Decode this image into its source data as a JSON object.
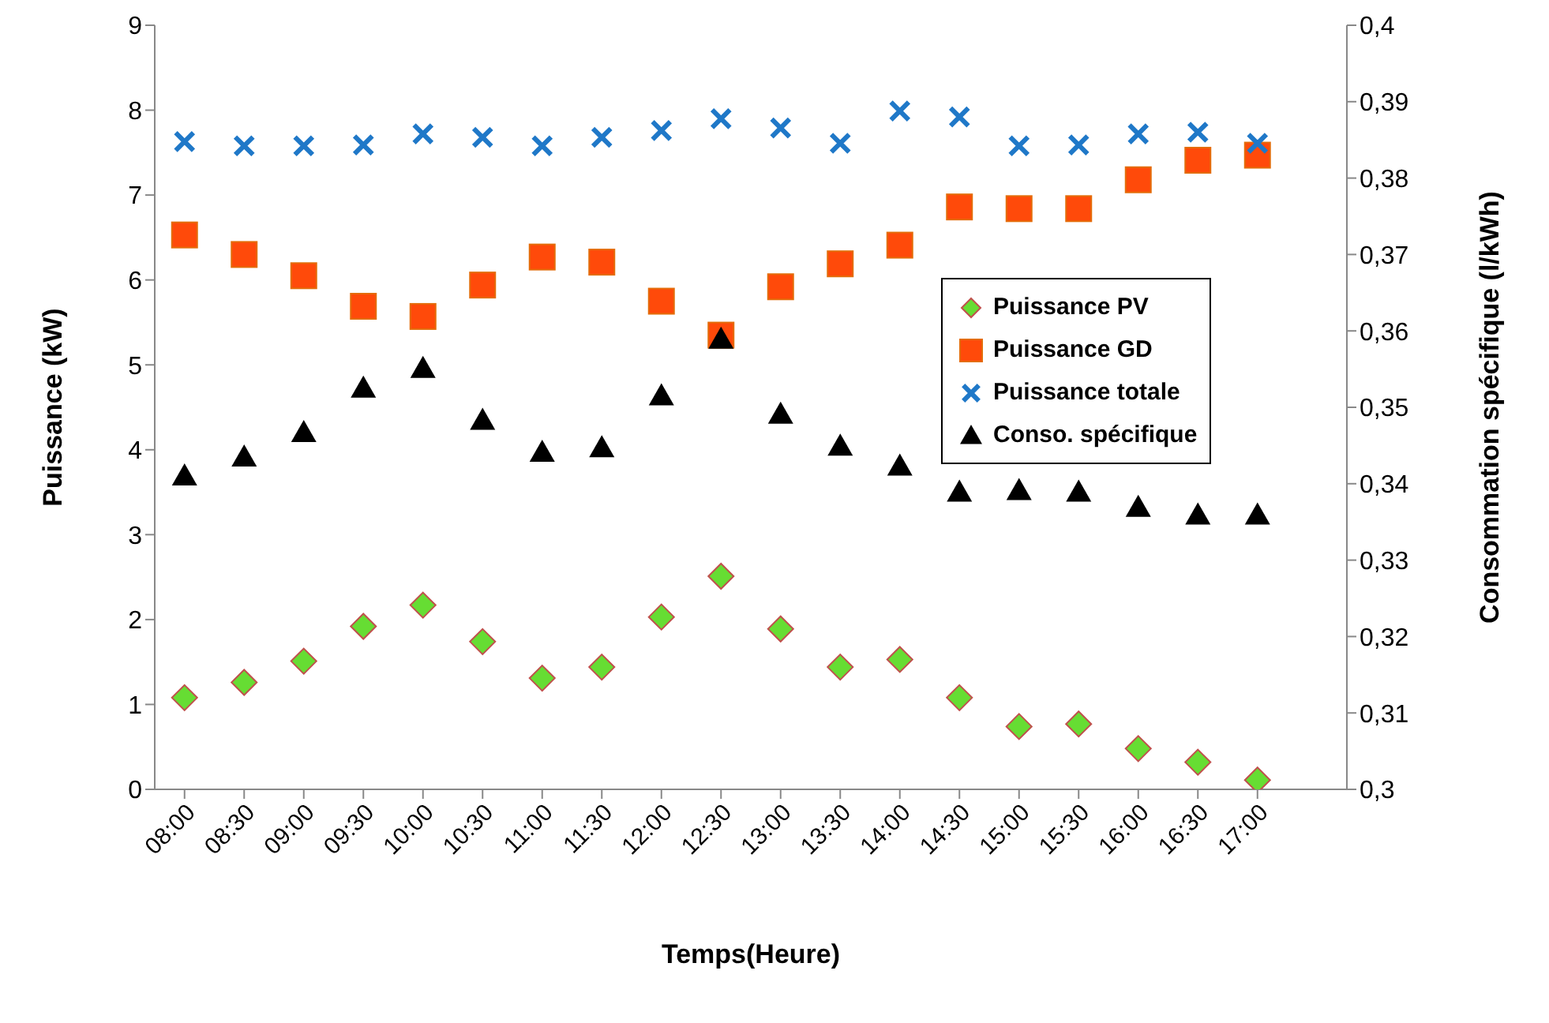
{
  "chart_data": {
    "type": "scatter",
    "xlabel": "Temps(Heure)",
    "ylabel": "Puissance (kW)",
    "y2label": "Consommation spécifique (l/kWh)",
    "x": [
      8,
      8.5,
      9,
      9.5,
      10,
      10.5,
      11,
      11.5,
      12,
      12.5,
      13,
      13.5,
      14,
      14.5,
      15,
      15.5,
      16,
      16.5,
      17
    ],
    "xlim": [
      7.75,
      17.75
    ],
    "xticks": [
      {
        "value": 8,
        "label": "08:00"
      },
      {
        "value": 8.5,
        "label": "08:30"
      },
      {
        "value": 9,
        "label": "09:00"
      },
      {
        "value": 9.5,
        "label": "09:30"
      },
      {
        "value": 10,
        "label": "10:00"
      },
      {
        "value": 10.5,
        "label": "10:30"
      },
      {
        "value": 11,
        "label": "11:00"
      },
      {
        "value": 11.5,
        "label": "11:30"
      },
      {
        "value": 12,
        "label": "12:00"
      },
      {
        "value": 12.5,
        "label": "12:30"
      },
      {
        "value": 13,
        "label": "13:00"
      },
      {
        "value": 13.5,
        "label": "13:30"
      },
      {
        "value": 14,
        "label": "14:00"
      },
      {
        "value": 14.5,
        "label": "14:30"
      },
      {
        "value": 15,
        "label": "15:00"
      },
      {
        "value": 15.5,
        "label": "15:30"
      },
      {
        "value": 16,
        "label": "16:00"
      },
      {
        "value": 16.5,
        "label": "16:30"
      },
      {
        "value": 17,
        "label": "17:00"
      }
    ],
    "ylim": [
      0,
      9
    ],
    "yticks": [
      0,
      1,
      2,
      3,
      4,
      5,
      6,
      7,
      8,
      9
    ],
    "y2lim": [
      0.3,
      0.4
    ],
    "y2ticks": [
      {
        "value": 0.3,
        "label": "0,3"
      },
      {
        "value": 0.31,
        "label": "0,31"
      },
      {
        "value": 0.32,
        "label": "0,32"
      },
      {
        "value": 0.33,
        "label": "0,33"
      },
      {
        "value": 0.34,
        "label": "0,34"
      },
      {
        "value": 0.35,
        "label": "0,35"
      },
      {
        "value": 0.36,
        "label": "0,36"
      },
      {
        "value": 0.37,
        "label": "0,37"
      },
      {
        "value": 0.38,
        "label": "0,38"
      },
      {
        "value": 0.39,
        "label": "0,39"
      },
      {
        "value": 0.4,
        "label": "0,4"
      }
    ],
    "grid": false,
    "legend": "right",
    "series": [
      {
        "name": "Puissance PV",
        "color": "#66dd33",
        "marker": "diamond",
        "values": [
          1.08,
          1.26,
          1.51,
          1.92,
          2.17,
          1.74,
          1.31,
          1.44,
          2.03,
          2.51,
          1.89,
          1.44,
          1.53,
          1.08,
          0.74,
          0.77,
          0.48,
          0.32,
          0.11
        ]
      },
      {
        "name": "Puissance GD",
        "color": "#ff4a0a",
        "marker": "square",
        "values": [
          6.53,
          6.3,
          6.05,
          5.69,
          5.57,
          5.94,
          6.27,
          6.21,
          5.75,
          5.35,
          5.92,
          6.19,
          6.41,
          6.86,
          6.84,
          6.84,
          7.18,
          7.41,
          7.47
        ]
      },
      {
        "name": "Puissance totale",
        "color": "#1f78c8",
        "marker": "cross",
        "values": [
          7.63,
          7.58,
          7.58,
          7.59,
          7.72,
          7.68,
          7.58,
          7.68,
          7.76,
          7.9,
          7.79,
          7.61,
          7.99,
          7.92,
          7.58,
          7.59,
          7.72,
          7.74,
          7.61
        ]
      },
      {
        "name": "Conso. spécifique",
        "color": "#000000",
        "marker": "triangle",
        "axis": "y2",
        "values": [
          0.341,
          0.3435,
          0.3467,
          0.3525,
          0.3551,
          0.3483,
          0.3441,
          0.3447,
          0.3515,
          0.3589,
          0.3491,
          0.3449,
          0.3423,
          0.3389,
          0.3391,
          0.3389,
          0.3369,
          0.3359,
          0.3359
        ]
      }
    ]
  }
}
